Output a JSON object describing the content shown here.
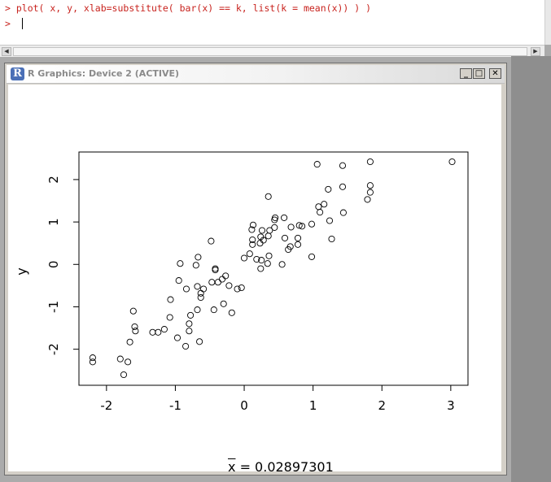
{
  "console": {
    "lines": [
      "> plot( x, y, xlab=substitute( bar(x) == k, list(k = mean(x)) ) )",
      "> "
    ]
  },
  "window": {
    "title": "R Graphics: Device 2 (ACTIVE)",
    "logo": "R",
    "buttons": {
      "minimize": "_",
      "maximize": "□",
      "close": "✕"
    }
  },
  "icons": [
    "r-logo-icon",
    "minimize-icon",
    "maximize-icon",
    "close-icon"
  ],
  "chart_data": {
    "type": "scatter",
    "xlabel_prefix": "x",
    "xlabel_value": "= 0.02897301",
    "ylabel": "y",
    "xlim": [
      -2.4,
      3.25
    ],
    "ylim": [
      -2.85,
      2.65
    ],
    "xticks": [
      -2,
      -1,
      0,
      1,
      2,
      3
    ],
    "yticks": [
      -2,
      -1,
      0,
      1,
      2
    ],
    "grid": false,
    "points": [
      [
        3.02,
        2.42
      ],
      [
        1.83,
        2.42
      ],
      [
        1.43,
        2.33
      ],
      [
        1.06,
        2.36
      ],
      [
        1.83,
        1.86
      ],
      [
        1.83,
        1.7
      ],
      [
        1.79,
        1.53
      ],
      [
        1.43,
        1.83
      ],
      [
        1.44,
        1.22
      ],
      [
        1.22,
        1.77
      ],
      [
        1.08,
        1.36
      ],
      [
        1.1,
        1.23
      ],
      [
        1.16,
        1.42
      ],
      [
        1.24,
        1.03
      ],
      [
        1.27,
        0.6
      ],
      [
        0.98,
        0.95
      ],
      [
        0.98,
        0.18
      ],
      [
        0.84,
        0.9
      ],
      [
        0.8,
        0.92
      ],
      [
        0.78,
        0.62
      ],
      [
        0.78,
        0.47
      ],
      [
        0.64,
        0.35
      ],
      [
        0.67,
        0.42
      ],
      [
        0.68,
        0.88
      ],
      [
        0.58,
        1.1
      ],
      [
        0.59,
        0.62
      ],
      [
        0.55,
        0.0
      ],
      [
        0.45,
        1.1
      ],
      [
        0.44,
        1.05
      ],
      [
        0.44,
        0.87
      ],
      [
        0.36,
        0.2
      ],
      [
        0.34,
        0.02
      ],
      [
        0.35,
        0.67
      ],
      [
        0.37,
        0.8
      ],
      [
        0.35,
        1.6
      ],
      [
        0.26,
        0.8
      ],
      [
        0.24,
        0.65
      ],
      [
        0.28,
        0.57
      ],
      [
        0.23,
        0.5
      ],
      [
        0.25,
        0.1
      ],
      [
        0.24,
        -0.1
      ],
      [
        0.18,
        0.12
      ],
      [
        0.13,
        0.93
      ],
      [
        0.11,
        0.82
      ],
      [
        0.12,
        0.58
      ],
      [
        0.12,
        0.47
      ],
      [
        0.08,
        0.25
      ],
      [
        0.0,
        0.15
      ],
      [
        -0.04,
        -0.55
      ],
      [
        -0.1,
        -0.58
      ],
      [
        -0.18,
        -1.14
      ],
      [
        -0.22,
        -0.5
      ],
      [
        -0.27,
        -0.27
      ],
      [
        -0.32,
        -0.35
      ],
      [
        -0.3,
        -0.93
      ],
      [
        -0.38,
        -0.42
      ],
      [
        -0.42,
        -0.1
      ],
      [
        -0.42,
        -0.13
      ],
      [
        -0.47,
        -0.42
      ],
      [
        -0.44,
        -1.07
      ],
      [
        -0.48,
        0.55
      ],
      [
        -0.59,
        -0.58
      ],
      [
        -0.63,
        -0.68
      ],
      [
        -0.63,
        -0.78
      ],
      [
        -0.65,
        -1.82
      ],
      [
        -0.67,
        0.17
      ],
      [
        -0.68,
        -0.52
      ],
      [
        -0.68,
        -1.07
      ],
      [
        -0.7,
        -0.02
      ],
      [
        -0.78,
        -1.2
      ],
      [
        -0.8,
        -1.4
      ],
      [
        -0.8,
        -1.57
      ],
      [
        -0.84,
        -0.58
      ],
      [
        -0.85,
        -1.93
      ],
      [
        -0.93,
        0.02
      ],
      [
        -0.95,
        -0.38
      ],
      [
        -0.97,
        -1.73
      ],
      [
        -1.07,
        -0.83
      ],
      [
        -1.08,
        -1.25
      ],
      [
        -1.16,
        -1.53
      ],
      [
        -1.25,
        -1.6
      ],
      [
        -1.33,
        -1.6
      ],
      [
        -1.61,
        -1.1
      ],
      [
        -1.59,
        -1.47
      ],
      [
        -1.58,
        -1.57
      ],
      [
        -1.66,
        -1.83
      ],
      [
        -1.69,
        -2.3
      ],
      [
        -1.75,
        -2.6
      ],
      [
        -1.8,
        -2.23
      ],
      [
        -2.2,
        -2.2
      ],
      [
        -2.2,
        -2.3
      ]
    ]
  }
}
